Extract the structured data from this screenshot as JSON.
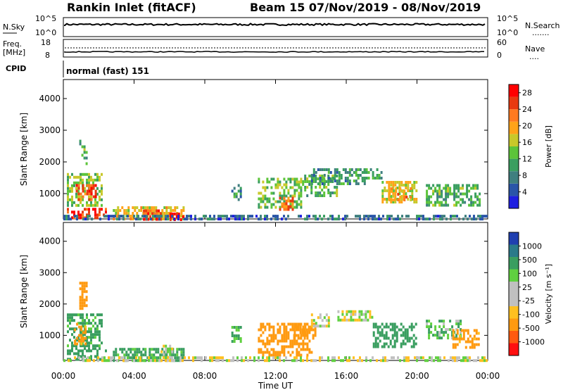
{
  "header": {
    "station": "Rankin Inlet (fitACF)",
    "beam_and_dates": "Beam 15  07/Nov/2019 - 08/Nov/2019"
  },
  "noise_panel": {
    "left_label": "N.Sky",
    "left_ticks": [
      "10^5",
      "10^0"
    ],
    "right_label": "N.Search",
    "right_ticks": [
      "10^5",
      "10^0"
    ],
    "legend_dots": "......."
  },
  "freq_panel": {
    "left_label_1": "Freq.",
    "left_label_2": "[MHz]",
    "left_ticks": [
      "18",
      "8"
    ],
    "right_label": "Nave",
    "right_ticks": [
      "60",
      "0"
    ],
    "legend_dots": "...."
  },
  "cpid_panel": {
    "label": "CPID",
    "mode_text": "normal (fast) 151"
  },
  "colors": {
    "power_scale": [
      "#1f1fe0",
      "#2a55a8",
      "#3f7f7f",
      "#3a9e60",
      "#5cc43a",
      "#c8c82a",
      "#ffa319",
      "#ff7a1f",
      "#e83a10",
      "#ff0000"
    ],
    "velocity_scale": [
      "#ff1010",
      "#ff5a10",
      "#ff9a10",
      "#ffc020",
      "#c0c0c0",
      "#c0c0c0",
      "#60d040",
      "#3a9e60",
      "#2a7a8a",
      "#1f3fb0"
    ],
    "ground_scatter": "#a0a0a0"
  },
  "chart_data": [
    {
      "type": "heatmap",
      "title": "Power",
      "xlabel": "",
      "ylabel": "Slant Range [km]",
      "x_ticks": [
        "00:00",
        "04:00",
        "08:00",
        "12:00",
        "16:00",
        "20:00",
        "00:00"
      ],
      "y_ticks": [
        "1000",
        "2000",
        "3000",
        "4000"
      ],
      "ylim": [
        200,
        4600
      ],
      "xlim_hours": [
        0,
        24
      ],
      "colorbar": {
        "label": "Power [dB]",
        "ticks": [
          "4",
          "8",
          "12",
          "16",
          "20",
          "24",
          "28"
        ],
        "range": [
          0,
          30
        ]
      },
      "regions": [
        {
          "t0": 0.2,
          "t1": 2.2,
          "r0": 650,
          "r1": 1650,
          "value": 14
        },
        {
          "t0": 0.7,
          "t1": 1.8,
          "r0": 800,
          "r1": 1300,
          "value": 24
        },
        {
          "t0": 0.9,
          "t1": 1.3,
          "r0": 1900,
          "r1": 2700,
          "value": 12
        },
        {
          "t0": 0.2,
          "t1": 2.4,
          "r0": 200,
          "r1": 550,
          "value": 26
        },
        {
          "t0": 2.8,
          "t1": 6.8,
          "r0": 200,
          "r1": 600,
          "value": 18
        },
        {
          "t0": 4.5,
          "t1": 5.5,
          "r0": 200,
          "r1": 500,
          "value": 25
        },
        {
          "t0": 6.0,
          "t1": 6.8,
          "r0": 200,
          "r1": 400,
          "value": 28
        },
        {
          "t0": 9.5,
          "t1": 10.0,
          "r0": 800,
          "r1": 1300,
          "value": 9
        },
        {
          "t0": 11.0,
          "t1": 13.5,
          "r0": 600,
          "r1": 1500,
          "value": 13
        },
        {
          "t0": 12.2,
          "t1": 13.0,
          "r0": 500,
          "r1": 900,
          "value": 22
        },
        {
          "t0": 13.5,
          "t1": 15.5,
          "r0": 900,
          "r1": 1600,
          "value": 12
        },
        {
          "t0": 14.0,
          "t1": 17.0,
          "r0": 1300,
          "r1": 1800,
          "value": 9
        },
        {
          "t0": 16.5,
          "t1": 18.0,
          "r0": 1500,
          "r1": 1800,
          "value": 11
        },
        {
          "t0": 18.0,
          "t1": 20.0,
          "r0": 700,
          "r1": 1400,
          "value": 17
        },
        {
          "t0": 18.4,
          "t1": 19.6,
          "r0": 800,
          "r1": 1200,
          "value": 21
        },
        {
          "t0": 20.5,
          "t1": 23.5,
          "r0": 600,
          "r1": 1300,
          "value": 12
        },
        {
          "t0": 0.0,
          "t1": 24.0,
          "r0": 200,
          "r1": 330,
          "value": 6
        }
      ]
    },
    {
      "type": "heatmap",
      "title": "Velocity",
      "xlabel": "Time UT",
      "ylabel": "Slant Range [km]",
      "x_ticks": [
        "00:00",
        "04:00",
        "08:00",
        "12:00",
        "16:00",
        "20:00",
        "00:00"
      ],
      "y_ticks": [
        "1000",
        "2000",
        "3000",
        "4000"
      ],
      "ylim": [
        200,
        4600
      ],
      "xlim_hours": [
        0,
        24
      ],
      "colorbar": {
        "label": "Velocity [m s⁻¹]",
        "ticks": [
          "1000",
          "500",
          "100",
          "25",
          "-25",
          "-100",
          "-500",
          "-1000"
        ]
      },
      "regions": [
        {
          "t0": 0.2,
          "t1": 2.2,
          "r0": 600,
          "r1": 1700,
          "value": 150
        },
        {
          "t0": 0.6,
          "t1": 1.2,
          "r0": 700,
          "r1": 1400,
          "value": -150
        },
        {
          "t0": 0.9,
          "t1": 1.3,
          "r0": 1900,
          "r1": 2800,
          "value": -300
        },
        {
          "t0": 0.2,
          "t1": 2.4,
          "r0": 200,
          "r1": 550,
          "value": 200
        },
        {
          "t0": 2.8,
          "t1": 6.8,
          "r0": 200,
          "r1": 600,
          "value": 150
        },
        {
          "t0": 5.5,
          "t1": 6.2,
          "r0": 250,
          "r1": 700,
          "value": 0
        },
        {
          "t0": 9.5,
          "t1": 10.0,
          "r0": 800,
          "r1": 1300,
          "value": 120
        },
        {
          "t0": 11.0,
          "t1": 14.0,
          "r0": 400,
          "r1": 1400,
          "value": -300
        },
        {
          "t0": 13.0,
          "t1": 14.3,
          "r0": 900,
          "r1": 1400,
          "value": -200
        },
        {
          "t0": 14.0,
          "t1": 15.0,
          "r0": 1300,
          "r1": 1700,
          "value": 0
        },
        {
          "t0": 15.5,
          "t1": 17.5,
          "r0": 1500,
          "r1": 1800,
          "value": 0
        },
        {
          "t0": 17.5,
          "t1": 20.0,
          "r0": 600,
          "r1": 1400,
          "value": 200
        },
        {
          "t0": 20.5,
          "t1": 22.5,
          "r0": 900,
          "r1": 1500,
          "value": 80
        },
        {
          "t0": 22.0,
          "t1": 23.5,
          "r0": 600,
          "r1": 1200,
          "value": -150
        },
        {
          "t0": 0.0,
          "t1": 24.0,
          "r0": 200,
          "r1": 330,
          "value": 0
        }
      ]
    }
  ]
}
